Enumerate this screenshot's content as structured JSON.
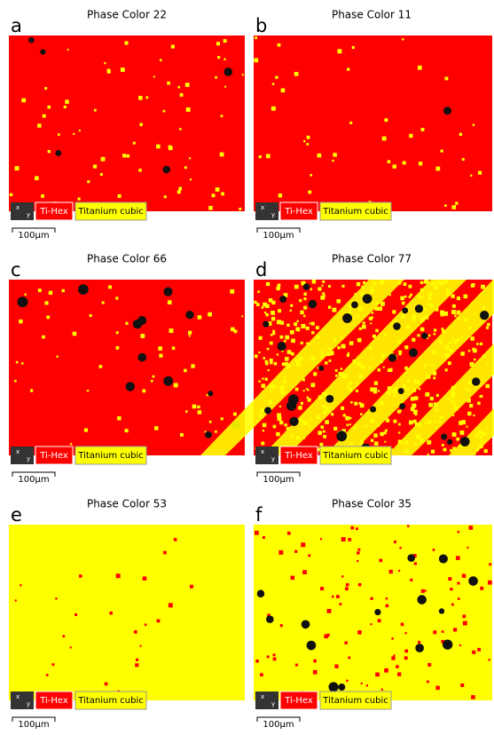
{
  "panels": [
    {
      "letter": "a",
      "title": "Phase Color 22"
    },
    {
      "letter": "b",
      "title": "Phase Color 11"
    },
    {
      "letter": "c",
      "title": "Phase Color 66"
    },
    {
      "letter": "d",
      "title": "Phase Color 77"
    },
    {
      "letter": "e",
      "title": "Phase Color 53"
    },
    {
      "letter": "f",
      "title": "Phase Color 35"
    }
  ],
  "axis_icon": [
    "x",
    "y"
  ],
  "legend": [
    "Ti-Hex",
    "Titanium cubic"
  ],
  "scale_bar": "100µm"
}
